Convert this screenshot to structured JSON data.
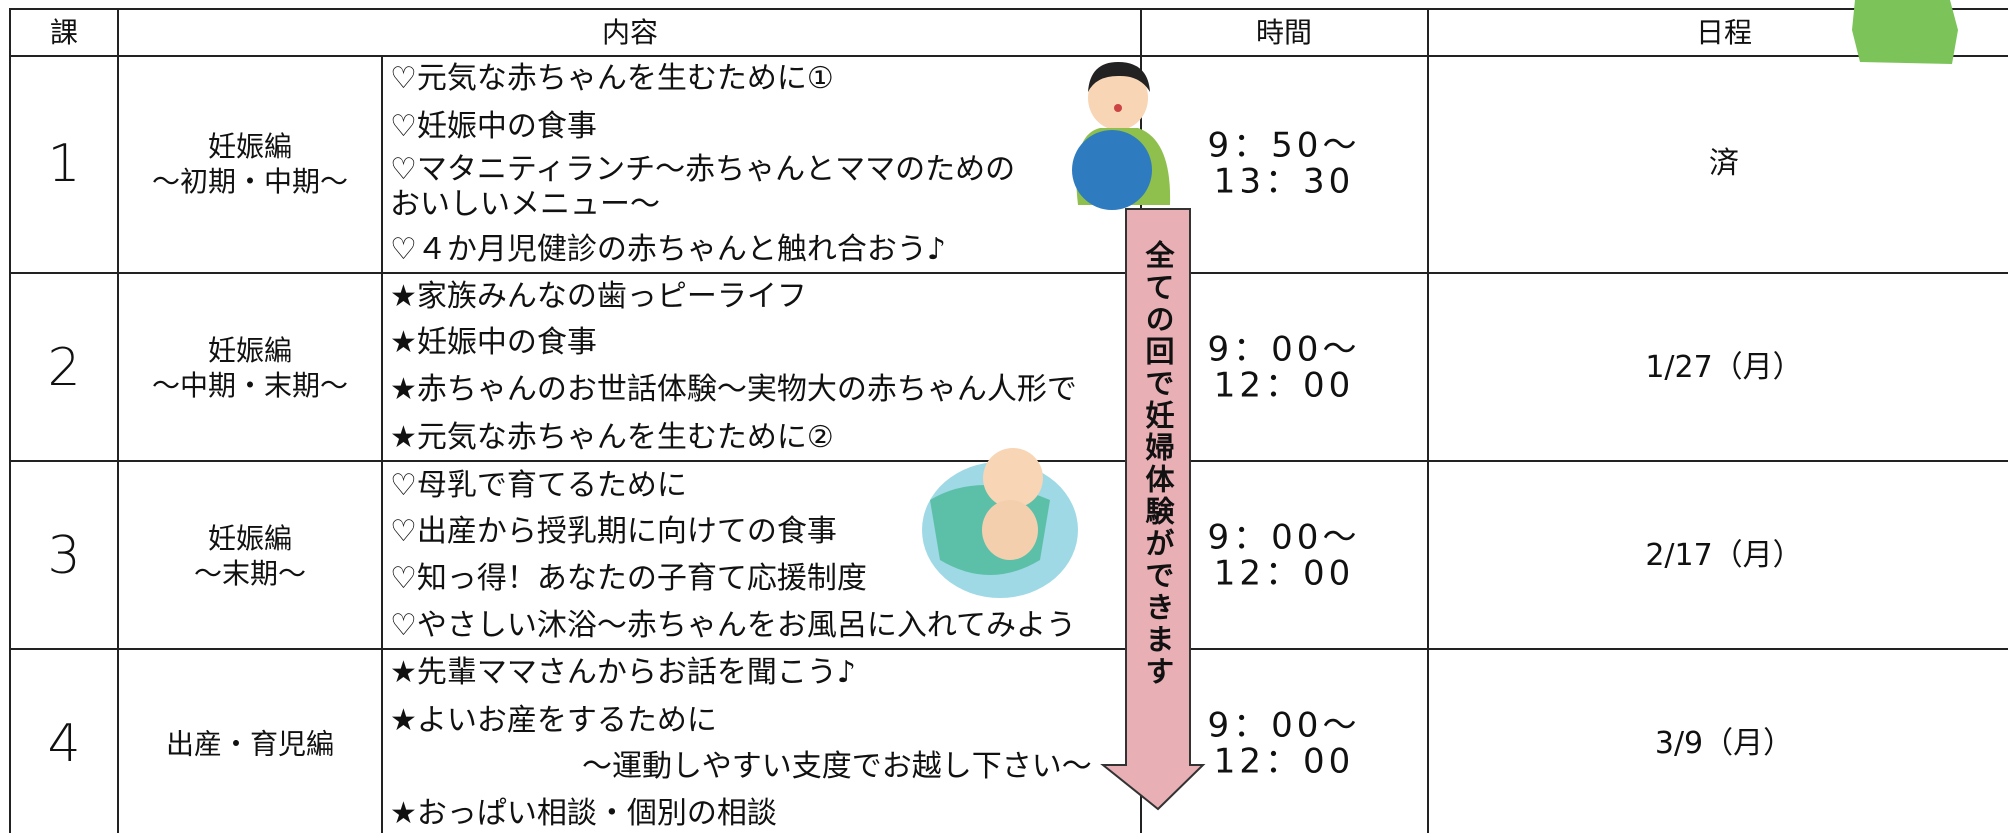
{
  "header": {
    "columns": [
      "課",
      "内容",
      "時間",
      "日程"
    ]
  },
  "rows": [
    {
      "number": "1",
      "section": [
        "妊娠編",
        "～初期・中期～"
      ],
      "items": [
        "♡元気な赤ちゃんを生むために①",
        "♡妊娠中の食事",
        "♡マタニティランチ～赤ちゃんとママのための",
        "おいしいメニュー～",
        "♡４か月児健診の赤ちゃんと触れ合おう♪"
      ],
      "time": [
        "9：50～",
        "13：30"
      ],
      "schedule": "済"
    },
    {
      "number": "2",
      "section": [
        "妊娠編",
        "～中期・末期～"
      ],
      "items": [
        "★家族みんなの歯っピーライフ",
        "★妊娠中の食事",
        "★赤ちゃんのお世話体験～実物大の赤ちゃん人形で",
        "★元気な赤ちゃんを生むために②"
      ],
      "time": [
        "9：00～",
        "12：00"
      ],
      "schedule": "1/27（月）"
    },
    {
      "number": "3",
      "section": [
        "妊娠編",
        "～末期～"
      ],
      "items": [
        "♡母乳で育てるために",
        "♡出産から授乳期に向けての食事",
        "♡知っ得！あなたの子育て応援制度",
        "♡やさしい沐浴～赤ちゃんをお風呂に入れてみよう"
      ],
      "time": [
        "9：00～",
        "12：00"
      ],
      "schedule": "2/17（月）"
    },
    {
      "number": "4",
      "section": [
        "出産・育児編"
      ],
      "items": [
        "★先輩ママさんからお話を聞こう♪",
        "★よいお産をするために",
        "～運動しやすい支度でお越し下さい～",
        "★おっぱい相談・個別の相談"
      ],
      "time": [
        "9：00～",
        "12：00"
      ],
      "schedule": "3/9（月）"
    }
  ],
  "callout": "全ての回で妊婦体験ができます"
}
